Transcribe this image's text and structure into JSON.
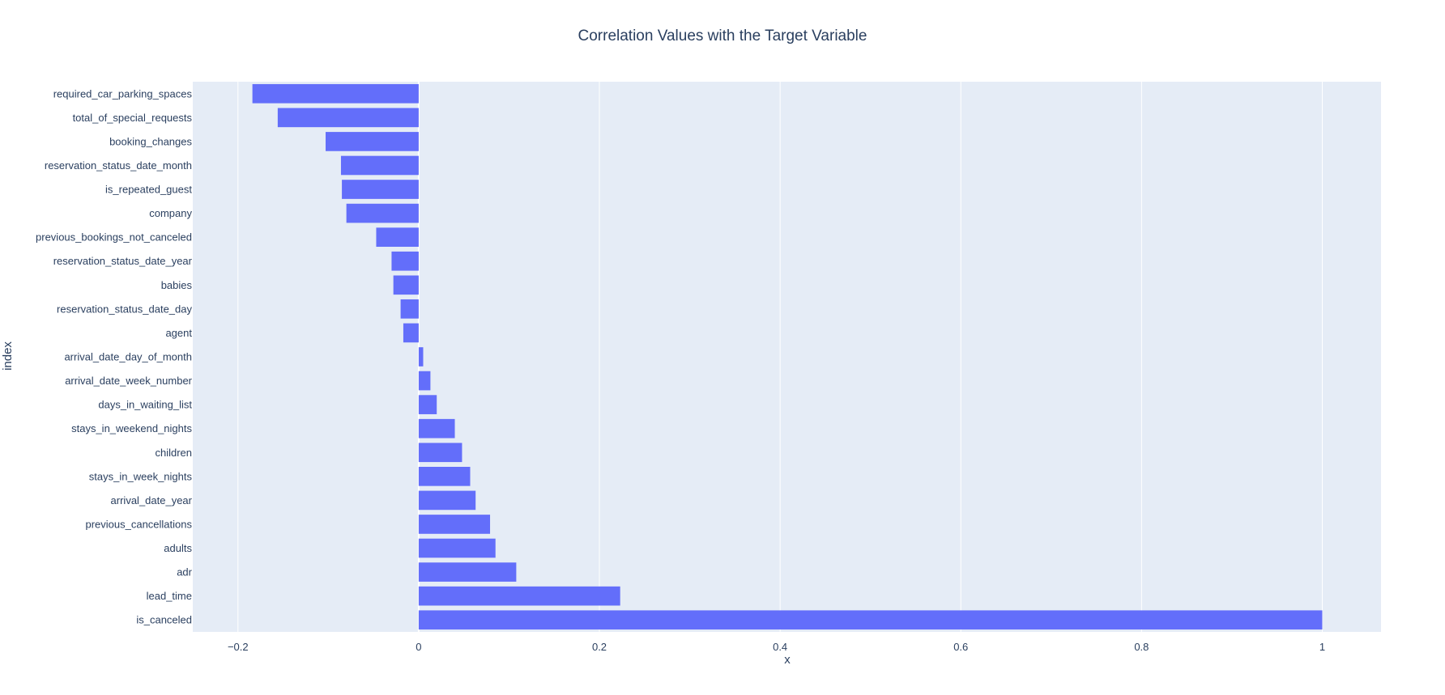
{
  "chart_data": {
    "type": "bar",
    "orientation": "horizontal",
    "title": "Correlation Values with the Target Variable",
    "xlabel": "x",
    "ylabel": "index",
    "xlim": [
      -0.25,
      1.065
    ],
    "xticks": [
      -0.2,
      0,
      0.2,
      0.4,
      0.6,
      0.8,
      1
    ],
    "xtick_labels": [
      "−0.2",
      "0",
      "0.2",
      "0.4",
      "0.6",
      "0.8",
      "1"
    ],
    "grid": true,
    "bar_color": "#636efa",
    "plot_bg": "#e5ecf6",
    "grid_color": "#ffffff",
    "categories": [
      "required_car_parking_spaces",
      "total_of_special_requests",
      "booking_changes",
      "reservation_status_date_month",
      "is_repeated_guest",
      "company",
      "previous_bookings_not_canceled",
      "reservation_status_date_year",
      "babies",
      "reservation_status_date_day",
      "agent",
      "arrival_date_day_of_month",
      "arrival_date_week_number",
      "days_in_waiting_list",
      "stays_in_weekend_nights",
      "children",
      "stays_in_week_nights",
      "arrival_date_year",
      "previous_cancellations",
      "adults",
      "adr",
      "lead_time",
      "is_canceled"
    ],
    "values": [
      -0.184,
      -0.156,
      -0.103,
      -0.086,
      -0.085,
      -0.08,
      -0.047,
      -0.03,
      -0.028,
      -0.02,
      -0.017,
      0.005,
      0.013,
      0.02,
      0.04,
      0.048,
      0.057,
      0.063,
      0.079,
      0.085,
      0.108,
      0.223,
      1.0
    ]
  }
}
